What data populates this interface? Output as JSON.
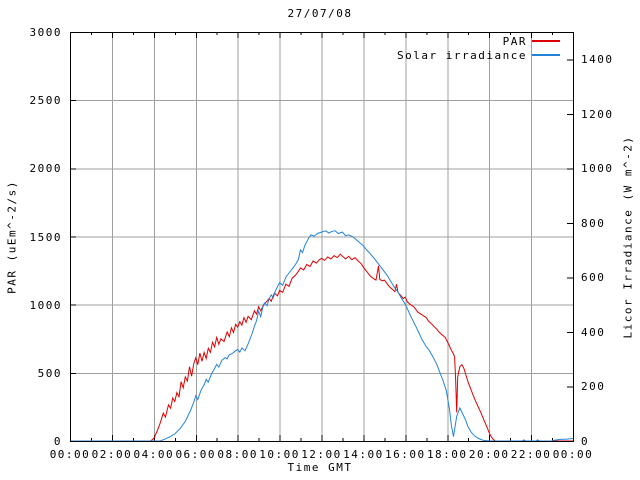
{
  "chart_data": {
    "type": "line",
    "title": "27/07/08",
    "background": "#ffffff",
    "border_color": "#000000",
    "grid": {
      "shown": true,
      "color": "#9f9f9f"
    },
    "legend": {
      "position": "top-right-inside"
    },
    "x_axis": {
      "label": "Time GMT",
      "range_hours": [
        0,
        24
      ],
      "major_tick_step_hours": 2,
      "minor_tick_step_hours": 1,
      "tick_labels": [
        "00:00",
        "02:00",
        "04:00",
        "06:00",
        "08:00",
        "10:00",
        "12:00",
        "14:00",
        "16:00",
        "18:00",
        "20:00",
        "22:00",
        "00:00"
      ]
    },
    "y_left": {
      "label": "PAR (uEm^-2/s)",
      "range": [
        0,
        3000
      ],
      "tick_step": 500,
      "tick_labels": [
        "0",
        "500",
        "1000",
        "1500",
        "2000",
        "2500",
        "3000"
      ]
    },
    "y_right": {
      "label": "Licor Irradiance (W m^-2)",
      "range": [
        0,
        1500
      ],
      "tick_step": 200,
      "tick_labels": [
        "0",
        "200",
        "400",
        "600",
        "800",
        "1000",
        "1200",
        "1400"
      ]
    },
    "series": [
      {
        "name": "PAR",
        "axis": "left",
        "color": "#e00000",
        "points": [
          [
            0,
            0
          ],
          [
            3.85,
            0
          ],
          [
            4.0,
            20
          ],
          [
            4.15,
            70
          ],
          [
            4.3,
            130
          ],
          [
            4.45,
            205
          ],
          [
            4.55,
            175
          ],
          [
            4.7,
            265
          ],
          [
            4.8,
            240
          ],
          [
            4.9,
            315
          ],
          [
            5.0,
            290
          ],
          [
            5.1,
            355
          ],
          [
            5.2,
            325
          ],
          [
            5.3,
            435
          ],
          [
            5.4,
            390
          ],
          [
            5.5,
            470
          ],
          [
            5.6,
            440
          ],
          [
            5.7,
            545
          ],
          [
            5.8,
            475
          ],
          [
            5.9,
            565
          ],
          [
            6.0,
            610
          ],
          [
            6.1,
            560
          ],
          [
            6.2,
            645
          ],
          [
            6.3,
            585
          ],
          [
            6.4,
            650
          ],
          [
            6.5,
            605
          ],
          [
            6.6,
            680
          ],
          [
            6.7,
            650
          ],
          [
            6.8,
            725
          ],
          [
            6.9,
            690
          ],
          [
            7.0,
            760
          ],
          [
            7.1,
            710
          ],
          [
            7.2,
            750
          ],
          [
            7.35,
            730
          ],
          [
            7.5,
            800
          ],
          [
            7.6,
            765
          ],
          [
            7.7,
            830
          ],
          [
            7.8,
            795
          ],
          [
            7.9,
            855
          ],
          [
            8.0,
            835
          ],
          [
            8.1,
            875
          ],
          [
            8.2,
            850
          ],
          [
            8.3,
            905
          ],
          [
            8.4,
            870
          ],
          [
            8.5,
            915
          ],
          [
            8.65,
            890
          ],
          [
            8.8,
            955
          ],
          [
            8.9,
            930
          ],
          [
            9.0,
            985
          ],
          [
            9.1,
            955
          ],
          [
            9.25,
            1005
          ],
          [
            9.4,
            1025
          ],
          [
            9.5,
            1045
          ],
          [
            9.6,
            1025
          ],
          [
            9.75,
            1085
          ],
          [
            9.9,
            1065
          ],
          [
            10.0,
            1105
          ],
          [
            10.15,
            1090
          ],
          [
            10.3,
            1150
          ],
          [
            10.45,
            1135
          ],
          [
            10.6,
            1195
          ],
          [
            10.75,
            1215
          ],
          [
            10.9,
            1245
          ],
          [
            11.0,
            1270
          ],
          [
            11.15,
            1255
          ],
          [
            11.3,
            1295
          ],
          [
            11.45,
            1280
          ],
          [
            11.6,
            1320
          ],
          [
            11.75,
            1305
          ],
          [
            11.9,
            1330
          ],
          [
            12.0,
            1340
          ],
          [
            12.15,
            1325
          ],
          [
            12.3,
            1350
          ],
          [
            12.45,
            1335
          ],
          [
            12.6,
            1360
          ],
          [
            12.75,
            1345
          ],
          [
            12.9,
            1370
          ],
          [
            13.0,
            1355
          ],
          [
            13.15,
            1335
          ],
          [
            13.3,
            1355
          ],
          [
            13.45,
            1330
          ],
          [
            13.6,
            1345
          ],
          [
            13.75,
            1320
          ],
          [
            13.9,
            1300
          ],
          [
            14.0,
            1275
          ],
          [
            14.1,
            1255
          ],
          [
            14.2,
            1235
          ],
          [
            14.3,
            1215
          ],
          [
            14.4,
            1200
          ],
          [
            14.5,
            1190
          ],
          [
            14.6,
            1180
          ],
          [
            14.72,
            1285
          ],
          [
            14.78,
            1185
          ],
          [
            14.9,
            1175
          ],
          [
            15.0,
            1180
          ],
          [
            15.1,
            1160
          ],
          [
            15.25,
            1130
          ],
          [
            15.4,
            1110
          ],
          [
            15.5,
            1095
          ],
          [
            15.58,
            1150
          ],
          [
            15.65,
            1090
          ],
          [
            15.8,
            1065
          ],
          [
            15.9,
            1045
          ],
          [
            16.0,
            1055
          ],
          [
            16.1,
            1020
          ],
          [
            16.25,
            1000
          ],
          [
            16.4,
            985
          ],
          [
            16.5,
            965
          ],
          [
            16.6,
            945
          ],
          [
            16.75,
            930
          ],
          [
            16.9,
            915
          ],
          [
            17.0,
            905
          ],
          [
            17.1,
            880
          ],
          [
            17.25,
            860
          ],
          [
            17.4,
            835
          ],
          [
            17.5,
            820
          ],
          [
            17.6,
            800
          ],
          [
            17.75,
            780
          ],
          [
            17.9,
            760
          ],
          [
            18.0,
            730
          ],
          [
            18.1,
            700
          ],
          [
            18.2,
            665
          ],
          [
            18.3,
            640
          ],
          [
            18.35,
            615
          ],
          [
            18.4,
            460
          ],
          [
            18.45,
            210
          ],
          [
            18.5,
            470
          ],
          [
            18.6,
            545
          ],
          [
            18.7,
            560
          ],
          [
            18.8,
            530
          ],
          [
            18.9,
            480
          ],
          [
            19.0,
            430
          ],
          [
            19.1,
            390
          ],
          [
            19.2,
            350
          ],
          [
            19.3,
            310
          ],
          [
            19.45,
            260
          ],
          [
            19.6,
            210
          ],
          [
            19.75,
            155
          ],
          [
            19.9,
            100
          ],
          [
            20.0,
            60
          ],
          [
            20.1,
            30
          ],
          [
            20.2,
            10
          ],
          [
            20.3,
            0
          ],
          [
            24,
            0
          ]
        ]
      },
      {
        "name": "Solar irradiance",
        "axis": "right",
        "color": "#2384d7",
        "points": [
          [
            0,
            0
          ],
          [
            4.3,
            0
          ],
          [
            4.5,
            6
          ],
          [
            4.75,
            15
          ],
          [
            5.0,
            26
          ],
          [
            5.25,
            45
          ],
          [
            5.5,
            72
          ],
          [
            5.75,
            112
          ],
          [
            5.9,
            142
          ],
          [
            6.0,
            166
          ],
          [
            6.1,
            152
          ],
          [
            6.25,
            186
          ],
          [
            6.4,
            206
          ],
          [
            6.5,
            226
          ],
          [
            6.6,
            216
          ],
          [
            6.75,
            246
          ],
          [
            6.9,
            266
          ],
          [
            7.0,
            281
          ],
          [
            7.1,
            271
          ],
          [
            7.25,
            296
          ],
          [
            7.4,
            306
          ],
          [
            7.5,
            301
          ],
          [
            7.6,
            316
          ],
          [
            7.75,
            321
          ],
          [
            7.9,
            331
          ],
          [
            8.0,
            336
          ],
          [
            8.1,
            326
          ],
          [
            8.2,
            341
          ],
          [
            8.35,
            331
          ],
          [
            8.5,
            356
          ],
          [
            8.6,
            376
          ],
          [
            8.7,
            396
          ],
          [
            8.8,
            421
          ],
          [
            8.9,
            441
          ],
          [
            9.0,
            476
          ],
          [
            9.1,
            456
          ],
          [
            9.2,
            491
          ],
          [
            9.3,
            506
          ],
          [
            9.4,
            496
          ],
          [
            9.5,
            521
          ],
          [
            9.6,
            536
          ],
          [
            9.7,
            526
          ],
          [
            9.8,
            551
          ],
          [
            9.9,
            566
          ],
          [
            10.0,
            581
          ],
          [
            10.15,
            571
          ],
          [
            10.3,
            601
          ],
          [
            10.45,
            616
          ],
          [
            10.6,
            631
          ],
          [
            10.75,
            646
          ],
          [
            10.9,
            666
          ],
          [
            11.0,
            701
          ],
          [
            11.1,
            691
          ],
          [
            11.2,
            716
          ],
          [
            11.3,
            731
          ],
          [
            11.4,
            746
          ],
          [
            11.5,
            756
          ],
          [
            11.65,
            751
          ],
          [
            11.8,
            761
          ],
          [
            12.0,
            766
          ],
          [
            12.2,
            771
          ],
          [
            12.35,
            763
          ],
          [
            12.5,
            769
          ],
          [
            12.65,
            771
          ],
          [
            12.8,
            761
          ],
          [
            13.0,
            766
          ],
          [
            13.15,
            753
          ],
          [
            13.3,
            756
          ],
          [
            13.5,
            749
          ],
          [
            13.65,
            739
          ],
          [
            13.8,
            729
          ],
          [
            14.0,
            716
          ],
          [
            14.15,
            701
          ],
          [
            14.3,
            689
          ],
          [
            14.5,
            671
          ],
          [
            14.65,
            656
          ],
          [
            14.8,
            641
          ],
          [
            15.0,
            621
          ],
          [
            15.15,
            606
          ],
          [
            15.3,
            586
          ],
          [
            15.5,
            561
          ],
          [
            15.65,
            546
          ],
          [
            15.8,
            526
          ],
          [
            16.0,
            501
          ],
          [
            16.15,
            476
          ],
          [
            16.3,
            451
          ],
          [
            16.5,
            421
          ],
          [
            16.65,
            396
          ],
          [
            16.8,
            371
          ],
          [
            17.0,
            346
          ],
          [
            17.15,
            331
          ],
          [
            17.3,
            311
          ],
          [
            17.5,
            281
          ],
          [
            17.65,
            251
          ],
          [
            17.8,
            221
          ],
          [
            17.95,
            186
          ],
          [
            18.1,
            121
          ],
          [
            18.2,
            56
          ],
          [
            18.3,
            16
          ],
          [
            18.45,
            91
          ],
          [
            18.6,
            121
          ],
          [
            18.7,
            106
          ],
          [
            18.85,
            81
          ],
          [
            19.0,
            51
          ],
          [
            19.15,
            31
          ],
          [
            19.3,
            19
          ],
          [
            19.5,
            9
          ],
          [
            19.7,
            3
          ],
          [
            20.0,
            0
          ],
          [
            21.6,
            0
          ],
          [
            21.65,
            4
          ],
          [
            21.75,
            0
          ],
          [
            22.25,
            0
          ],
          [
            22.3,
            4
          ],
          [
            22.4,
            0
          ],
          [
            23.0,
            0
          ],
          [
            23.1,
            3
          ],
          [
            23.4,
            6
          ],
          [
            23.7,
            7
          ],
          [
            24.0,
            9
          ]
        ]
      }
    ]
  }
}
